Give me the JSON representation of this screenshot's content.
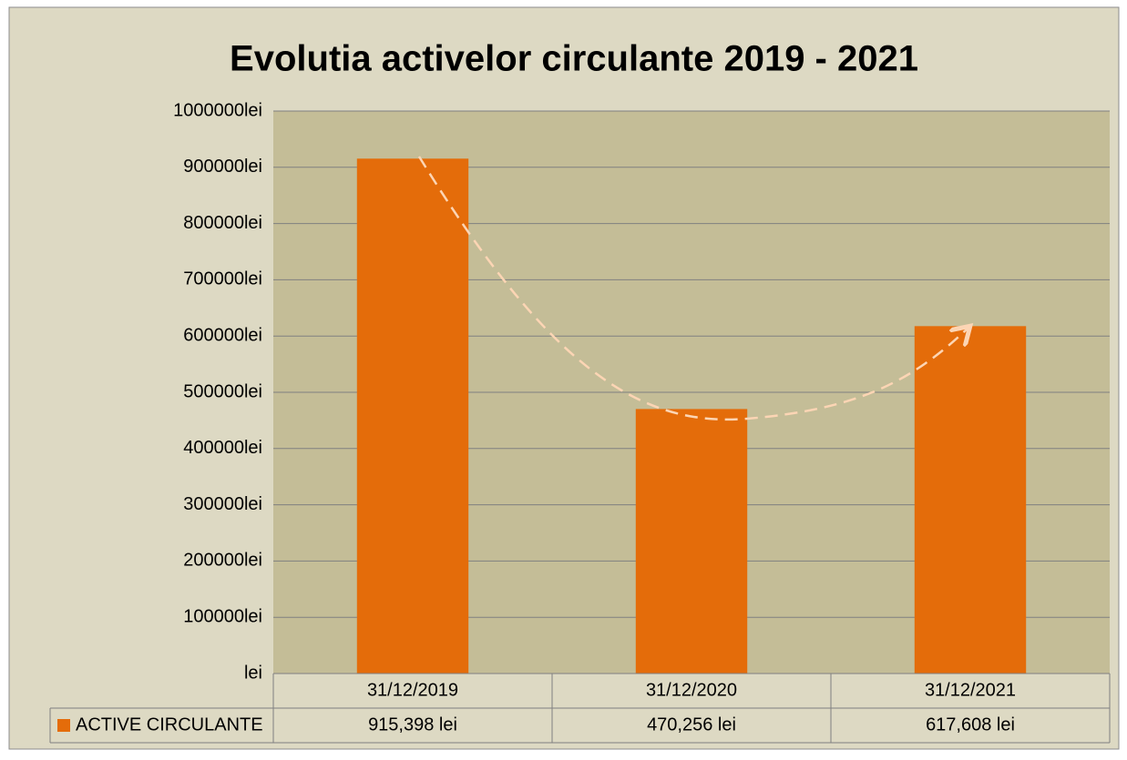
{
  "chart_data": {
    "type": "bar",
    "title": "Evolutia activelor circulante 2019 - 2021",
    "categories": [
      "31/12/2019",
      "31/12/2020",
      "31/12/2021"
    ],
    "series": [
      {
        "name": "ACTIVE CIRCULANTE",
        "color": "#e46c0a",
        "values": [
          915398,
          470256,
          617608
        ],
        "value_labels": [
          "915,398 lei",
          "470,256 lei",
          "617,608 lei"
        ]
      }
    ],
    "ylim": [
      0,
      1000000
    ],
    "yticks": [
      {
        "value": 0,
        "label": "lei"
      },
      {
        "value": 100000,
        "label": "100000lei"
      },
      {
        "value": 200000,
        "label": "200000lei"
      },
      {
        "value": 300000,
        "label": "300000lei"
      },
      {
        "value": 400000,
        "label": "400000lei"
      },
      {
        "value": 500000,
        "label": "500000lei"
      },
      {
        "value": 600000,
        "label": "600000lei"
      },
      {
        "value": 700000,
        "label": "700000lei"
      },
      {
        "value": 800000,
        "label": "800000lei"
      },
      {
        "value": 900000,
        "label": "900000lei"
      },
      {
        "value": 1000000,
        "label": "1000000lei"
      }
    ],
    "grid": true,
    "data_table": true
  }
}
